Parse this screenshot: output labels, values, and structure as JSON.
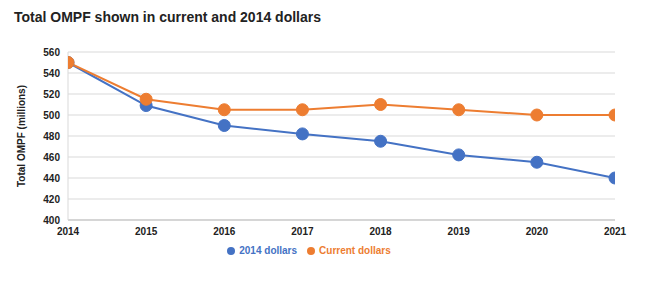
{
  "chart_data": {
    "type": "line",
    "title": "Total OMPF shown in current and 2014 dollars",
    "y_label": "Total OMPF (millions)",
    "x": [
      2014,
      2015,
      2016,
      2017,
      2018,
      2019,
      2020,
      2021
    ],
    "series": [
      {
        "name": "2014 dollars",
        "color": "#4472c4",
        "marker": "circle",
        "values": [
          550,
          509,
          490,
          482,
          475,
          462,
          455,
          440
        ]
      },
      {
        "name": "Current dollars",
        "color": "#ed7d31",
        "marker": "circle",
        "values": [
          550,
          515,
          505,
          505,
          510,
          505,
          500,
          500
        ]
      }
    ],
    "xlim": [
      2014,
      2021
    ],
    "xticks": [
      2014,
      2015,
      2016,
      2017,
      2018,
      2019,
      2020,
      2021
    ],
    "ylim": [
      400,
      560
    ],
    "yticks": [
      400,
      420,
      440,
      460,
      480,
      500,
      520,
      540,
      560
    ],
    "grid": true,
    "legend": "bottom"
  }
}
